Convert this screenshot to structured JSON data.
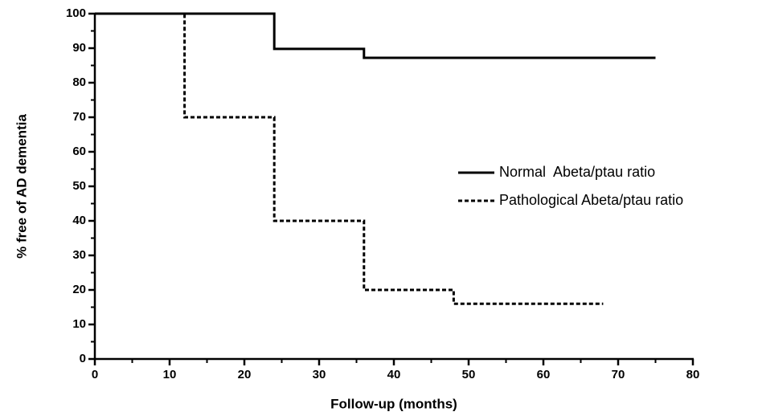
{
  "chart_data": {
    "type": "step",
    "x_label": "Follow-up (months)",
    "y_label": "% free of AD dementia",
    "xlim": [
      0,
      80
    ],
    "xticks": [
      0,
      10,
      20,
      30,
      40,
      50,
      60,
      70,
      80
    ],
    "xticks_minor": [
      5,
      15,
      25,
      35,
      45,
      55,
      65,
      75
    ],
    "ylim": [
      0,
      100
    ],
    "yticks": [
      0,
      10,
      20,
      30,
      40,
      50,
      60,
      70,
      80,
      90,
      100
    ],
    "yticks_minor": [
      5,
      15,
      25,
      35,
      45,
      55,
      65,
      75,
      85,
      95
    ],
    "legend": "center right",
    "series": [
      {
        "name": "Normal  Abeta/ptau ratio",
        "color": "#000000",
        "line_style": "solid",
        "x": [
          0,
          24,
          36,
          75
        ],
        "values": [
          100,
          89.8,
          87.2,
          87.2
        ]
      },
      {
        "name": "Pathological Abeta/ptau ratio",
        "color": "#000000",
        "line_style": "dashed",
        "x": [
          0,
          12,
          24,
          36,
          48,
          68
        ],
        "values": [
          100,
          70,
          40,
          20,
          16,
          16
        ]
      }
    ]
  }
}
